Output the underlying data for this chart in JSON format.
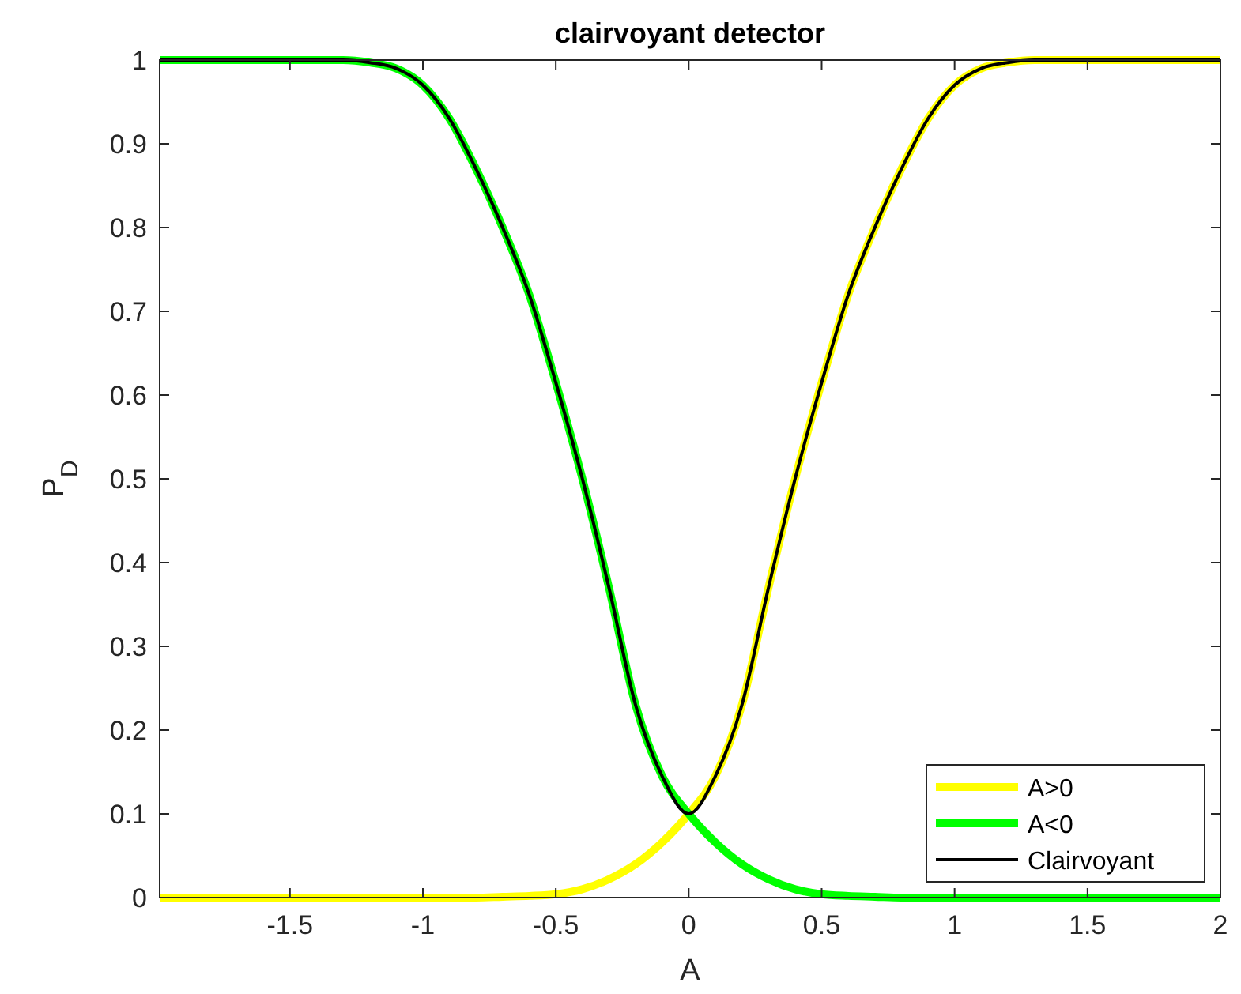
{
  "chart_data": {
    "type": "line",
    "title": "clairvoyant detector",
    "xlabel": "A",
    "ylabel": "P$_{D}$",
    "x": [
      -1.99,
      -1.5,
      -1.3,
      -1.2,
      -1.1,
      -1,
      -0.9,
      -0.8,
      -0.7,
      -0.6,
      -0.5,
      -0.4,
      -0.3,
      -0.2,
      -0.1,
      0,
      0.1,
      0.2,
      0.3,
      0.4,
      0.5,
      0.6,
      0.7,
      0.8,
      0.9,
      1,
      1.1,
      1.2,
      1.3,
      1.5,
      2
    ],
    "series": [
      {
        "name": "A>0",
        "color": "#ffff00",
        "values": [
          0,
          0,
          0,
          0,
          0,
          0,
          0,
          0,
          0.001,
          0.002,
          0.004,
          0.01,
          0.022,
          0.04,
          0.066,
          0.1,
          0.145,
          0.23,
          0.37,
          0.5,
          0.615,
          0.72,
          0.8,
          0.87,
          0.93,
          0.97,
          0.99,
          0.997,
          1,
          1,
          1
        ]
      },
      {
        "name": "A<0",
        "color": "#00ff00",
        "values": [
          1,
          1,
          1,
          0.997,
          0.99,
          0.97,
          0.93,
          0.87,
          0.8,
          0.72,
          0.615,
          0.5,
          0.37,
          0.23,
          0.145,
          0.1,
          0.066,
          0.04,
          0.022,
          0.01,
          0.004,
          0.002,
          0.001,
          0,
          0,
          0,
          0,
          0,
          0,
          0,
          0
        ]
      },
      {
        "name": "Clairvoyant",
        "color": "#000000",
        "values": [
          1,
          1,
          1,
          0.997,
          0.99,
          0.97,
          0.93,
          0.87,
          0.8,
          0.72,
          0.615,
          0.5,
          0.37,
          0.23,
          0.145,
          0.1,
          0.145,
          0.23,
          0.37,
          0.5,
          0.615,
          0.72,
          0.8,
          0.87,
          0.93,
          0.97,
          0.99,
          0.997,
          1,
          1,
          1
        ]
      }
    ],
    "xlim": [
      -1.99,
      2
    ],
    "xticks": [
      -1.5,
      -1,
      -0.5,
      0,
      0.5,
      1,
      1.5,
      2
    ],
    "ylim": [
      0,
      1
    ],
    "yticks": [
      0,
      0.1,
      0.2,
      0.3,
      0.4,
      0.5,
      0.6,
      0.7,
      0.8,
      0.9,
      1
    ],
    "grid": false,
    "legend": "bottom right",
    "marker": "none",
    "line_style": "solid"
  }
}
